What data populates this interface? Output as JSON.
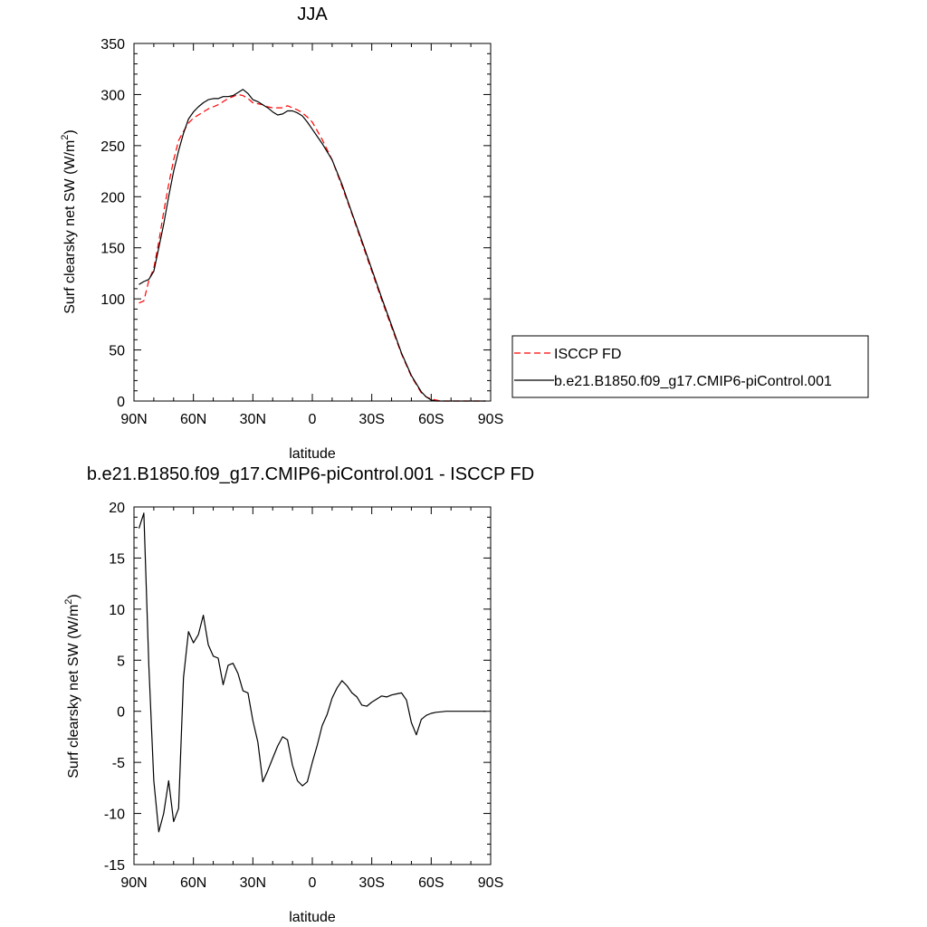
{
  "chart_data": [
    {
      "type": "line",
      "title": "JJA",
      "xlabel": "latitude",
      "ylabel_main": "Surf clearsky net SW (W/m",
      "ylabel_sup": "2",
      "ylabel_close": ")",
      "xlim": [
        90,
        -90
      ],
      "ylim": [
        0,
        350
      ],
      "xticks": [
        90,
        60,
        30,
        0,
        -30,
        -60,
        -90
      ],
      "xtick_labels": [
        "90N",
        "60N",
        "30N",
        "0",
        "30S",
        "60S",
        "90S"
      ],
      "yticks": [
        0,
        50,
        100,
        150,
        200,
        250,
        300,
        350
      ],
      "ytick_labels": [
        "0",
        "50",
        "100",
        "150",
        "200",
        "250",
        "300",
        "350"
      ],
      "grid": false,
      "legend_position": "right",
      "series": [
        {
          "name": "ISCCP FD",
          "color": "#ff0000",
          "dash": "dashed",
          "x": [
            87.5,
            85,
            82.5,
            80,
            77.5,
            75,
            72.5,
            70,
            67.5,
            65,
            62.5,
            60,
            57.5,
            55,
            52.5,
            50,
            47.5,
            45,
            42.5,
            40,
            37.5,
            35,
            32.5,
            30,
            27.5,
            25,
            22.5,
            20,
            17.5,
            15,
            12.5,
            10,
            7.5,
            5,
            2.5,
            0,
            -5,
            -10,
            -15,
            -20,
            -25,
            -30,
            -35,
            -40,
            -45,
            -50,
            -55,
            -57.5,
            -60,
            -62.5,
            -65,
            -67.5,
            -70,
            -72.5,
            -75,
            -77.5,
            -80,
            -82.5,
            -85,
            -87.5
          ],
          "y": [
            96,
            98,
            118,
            130,
            156,
            185,
            212,
            236,
            255,
            264,
            272,
            277,
            280,
            283,
            286,
            288,
            290,
            293,
            296,
            298,
            300,
            299,
            296,
            292,
            291,
            290,
            288,
            287,
            287,
            287,
            289,
            287,
            285,
            282,
            278,
            273,
            256,
            236,
            210,
            183,
            155,
            127,
            99,
            72,
            46,
            24,
            8,
            4,
            2,
            1,
            0,
            0,
            0,
            0,
            0,
            0,
            0,
            0,
            0,
            0
          ]
        },
        {
          "name": "b.e21.B1850.f09_g17.CMIP6-piControl.001",
          "color": "#000000",
          "dash": "solid",
          "x": [
            87.5,
            85,
            82.5,
            80,
            77.5,
            75,
            72.5,
            70,
            67.5,
            65,
            62.5,
            60,
            57.5,
            55,
            52.5,
            50,
            47.5,
            45,
            42.5,
            40,
            37.5,
            35,
            32.5,
            30,
            27.5,
            25,
            22.5,
            20,
            17.5,
            15,
            12.5,
            10,
            7.5,
            5,
            2.5,
            0,
            -5,
            -10,
            -15,
            -20,
            -25,
            -30,
            -35,
            -40,
            -45,
            -50,
            -55,
            -57.5,
            -60,
            -62.5,
            -65,
            -67.5,
            -70,
            -72.5,
            -75,
            -77.5,
            -80,
            -82.5,
            -85,
            -87.5
          ],
          "y": [
            114,
            117,
            119,
            127,
            150,
            173,
            200,
            225,
            245,
            262,
            276,
            283,
            288,
            292,
            295,
            296,
            296,
            298,
            298,
            299,
            302,
            305,
            301,
            295,
            293,
            290,
            287,
            283,
            280,
            281,
            284,
            284,
            282,
            279,
            273,
            266,
            252,
            236,
            212,
            184,
            157,
            129,
            101,
            74,
            47,
            25,
            9,
            4,
            1,
            0,
            0,
            0,
            0,
            0,
            0,
            0,
            0,
            0,
            0,
            0
          ]
        }
      ]
    },
    {
      "type": "line",
      "title": "b.e21.B1850.f09_g17.CMIP6-piControl.001 - ISCCP FD",
      "xlabel": "latitude",
      "ylabel_main": "Surf clearsky net SW (W/m",
      "ylabel_sup": "2",
      "ylabel_close": ")",
      "xlim": [
        90,
        -90
      ],
      "ylim": [
        -15,
        20
      ],
      "xticks": [
        90,
        60,
        30,
        0,
        -30,
        -60,
        -90
      ],
      "xtick_labels": [
        "90N",
        "60N",
        "30N",
        "0",
        "30S",
        "60S",
        "90S"
      ],
      "yticks": [
        -15,
        -10,
        -5,
        0,
        5,
        10,
        15,
        20
      ],
      "ytick_labels": [
        "-15",
        "-10",
        "-5",
        "0",
        "5",
        "10",
        "15",
        "20"
      ],
      "grid": false,
      "series": [
        {
          "color": "#000000",
          "dash": "solid",
          "x": [
            87.5,
            85,
            82.5,
            80,
            77.5,
            75,
            72.5,
            70,
            67.5,
            65,
            62.5,
            60,
            57.5,
            55,
            52.5,
            50,
            47.5,
            45,
            42.5,
            40,
            37.5,
            35,
            32.5,
            30,
            27.5,
            25,
            22.5,
            20,
            17.5,
            15,
            12.5,
            10,
            7.5,
            5,
            2.5,
            0,
            -2.5,
            -5,
            -7.5,
            -10,
            -12.5,
            -15,
            -17.5,
            -20,
            -22.5,
            -25,
            -27.5,
            -30,
            -32.5,
            -35,
            -37.5,
            -40,
            -42.5,
            -45,
            -47.5,
            -50,
            -52.5,
            -55,
            -57.5,
            -60,
            -62.5,
            -65,
            -67.5,
            -70,
            -72.5,
            -75,
            -77.5,
            -80,
            -82.5,
            -85,
            -87.5
          ],
          "y": [
            17.9,
            19.4,
            4.5,
            -6.8,
            -11.8,
            -10.0,
            -6.8,
            -10.8,
            -9.5,
            3.3,
            7.8,
            6.7,
            7.5,
            9.4,
            6.5,
            5.4,
            5.2,
            2.6,
            4.5,
            4.7,
            3.7,
            2.0,
            1.8,
            -0.9,
            -3.0,
            -6.9,
            -5.8,
            -4.6,
            -3.4,
            -2.5,
            -2.8,
            -5.3,
            -6.8,
            -7.3,
            -6.9,
            -5.0,
            -3.3,
            -1.4,
            -0.3,
            1.3,
            2.3,
            3.0,
            2.5,
            1.8,
            1.4,
            0.6,
            0.5,
            0.9,
            1.2,
            1.5,
            1.4,
            1.6,
            1.7,
            1.8,
            1.1,
            -1.1,
            -2.3,
            -0.8,
            -0.4,
            -0.2,
            -0.1,
            -0.05,
            0.0,
            0.0,
            0.0,
            0.0,
            0.0,
            0.0,
            0.0,
            0.0,
            0.0
          ]
        }
      ]
    }
  ]
}
